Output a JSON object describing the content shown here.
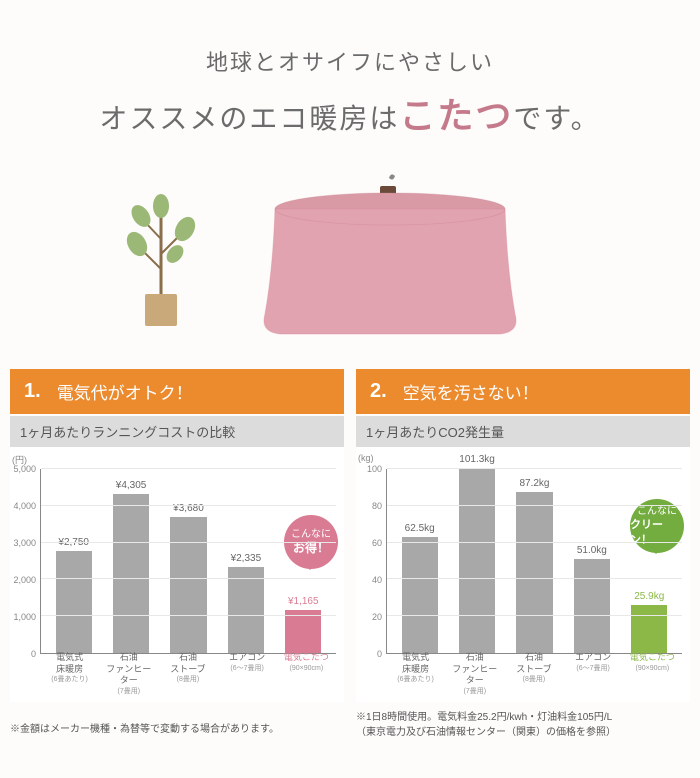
{
  "hero": {
    "line1": "地球とオサイフにやさしい",
    "line2_pre": "オススメのエコ暖房は",
    "line2_accent": "こたつ",
    "line2_post": "です。"
  },
  "colors": {
    "header_bg": "#ec8b2e",
    "accent_text": "#c47a8a",
    "bar_default": "#a8a8a8",
    "bar_highlight_pink": "#d97c93",
    "bar_highlight_green": "#8bb846",
    "badge_pink": "#d97c93",
    "badge_green": "#74ad3f",
    "chart_title_bg": "#dcdcdc"
  },
  "section1": {
    "num": "1.",
    "title": "電気代がオトク！",
    "chart_title": "1ヶ月あたりランニングコストの比較",
    "y_unit": "(円)",
    "y_max": 5000,
    "y_ticks": [
      0,
      1000,
      2000,
      3000,
      4000,
      5000
    ],
    "y_tick_labels": [
      "0",
      "1,000",
      "2,000",
      "3,000",
      "4,000",
      "5,000"
    ],
    "bars": [
      {
        "label": "電気式\n床暖房",
        "sub": "(6畳あたり)",
        "value": 2750,
        "display": "¥2,750",
        "color": "#a8a8a8"
      },
      {
        "label": "石油\nファンヒーター",
        "sub": "(7畳用)",
        "value": 4305,
        "display": "¥4,305",
        "color": "#a8a8a8"
      },
      {
        "label": "石油\nストーブ",
        "sub": "(8畳用)",
        "value": 3680,
        "display": "¥3,680",
        "color": "#a8a8a8"
      },
      {
        "label": "エアコン",
        "sub": "(6～7畳用)",
        "value": 2335,
        "display": "¥2,335",
        "color": "#a8a8a8"
      },
      {
        "label": "電気こたつ",
        "sub": "(90×90cm)",
        "value": 1165,
        "display": "¥1,165",
        "color": "#d97c93",
        "label_color": "#d97c93"
      }
    ],
    "badge": {
      "line1": "こんなに",
      "line2": "お得！",
      "color": "#d97c93"
    },
    "footnote": "※金額はメーカー機種・為替等で変動する場合があります。"
  },
  "section2": {
    "num": "2.",
    "title": "空気を汚さない！",
    "chart_title": "1ヶ月あたりCO2発生量",
    "y_unit": "(kg)",
    "y_max": 100,
    "y_ticks": [
      0,
      20,
      40,
      60,
      80,
      100
    ],
    "y_tick_labels": [
      "0",
      "20",
      "40",
      "60",
      "80",
      "100"
    ],
    "bars": [
      {
        "label": "電気式\n床暖房",
        "sub": "(6畳あたり)",
        "value": 62.5,
        "display": "62.5kg",
        "color": "#a8a8a8"
      },
      {
        "label": "石油\nファンヒーター",
        "sub": "(7畳用)",
        "value": 101.3,
        "display": "101.3kg",
        "color": "#a8a8a8"
      },
      {
        "label": "石油\nストーブ",
        "sub": "(8畳用)",
        "value": 87.2,
        "display": "87.2kg",
        "color": "#a8a8a8"
      },
      {
        "label": "エアコン",
        "sub": "(6～7畳用)",
        "value": 51.0,
        "display": "51.0kg",
        "color": "#a8a8a8"
      },
      {
        "label": "電気こたつ",
        "sub": "(90×90cm)",
        "value": 25.9,
        "display": "25.9kg",
        "color": "#8bb846",
        "label_color": "#8bb846"
      }
    ],
    "badge": {
      "line1": "こんなに",
      "line2": "クリーン！",
      "color": "#74ad3f"
    },
    "footnote": "※1日8時間使用。電気料金25.2円/kwh・灯油料金105円/L\n（東京電力及び石油情報センター（関東）の価格を参照）"
  }
}
